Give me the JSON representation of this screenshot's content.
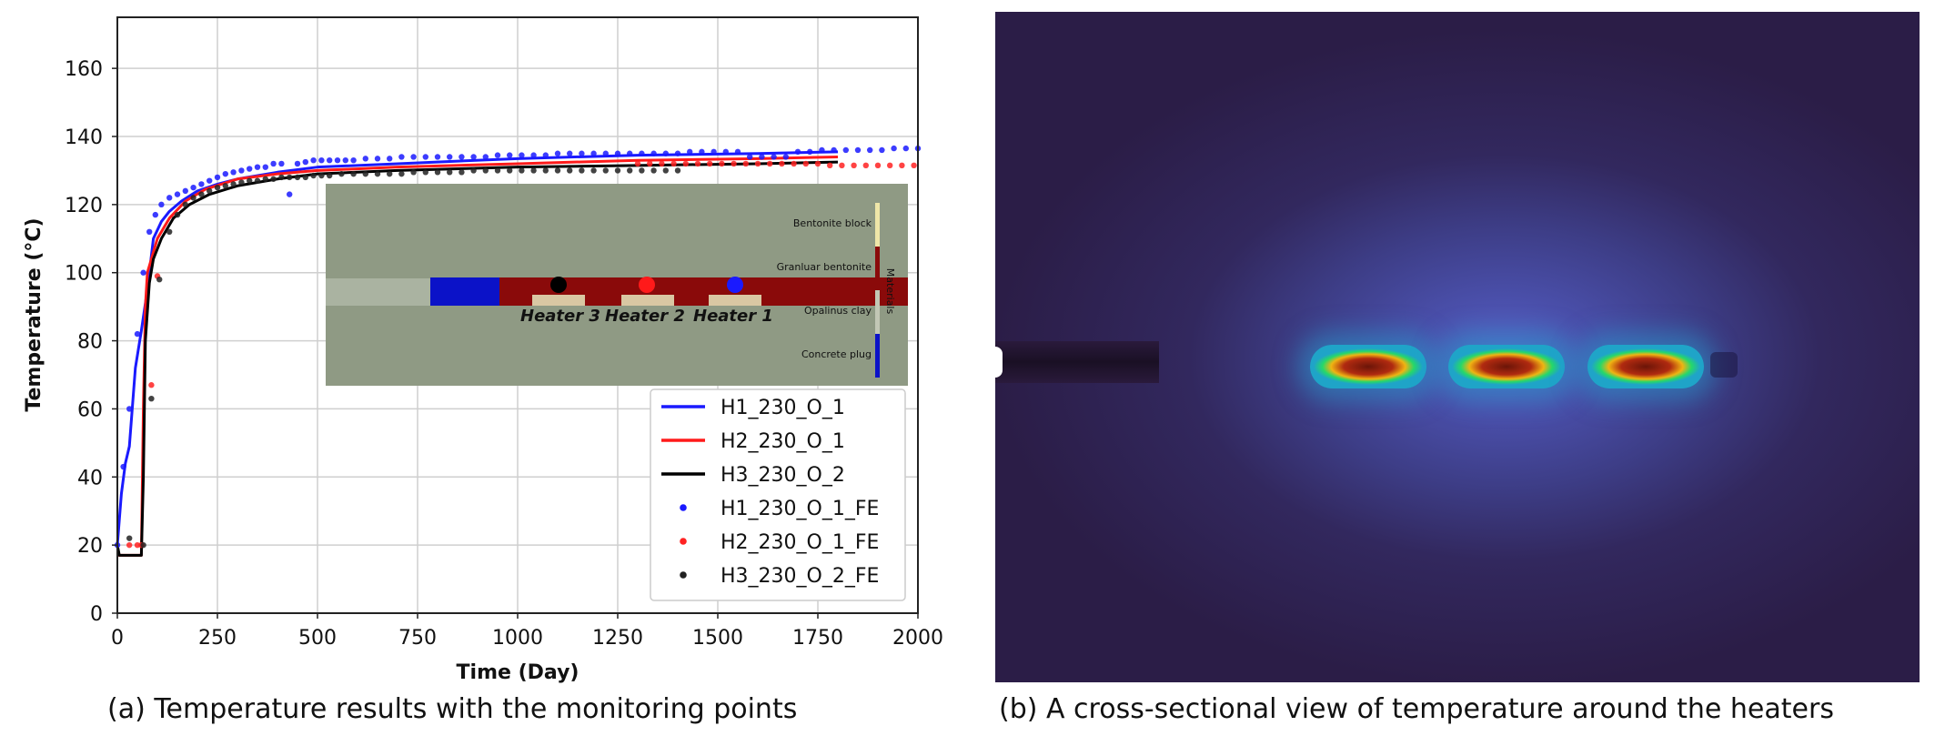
{
  "chart_data": {
    "type": "line",
    "xlabel": "Time (Day)",
    "ylabel": "Temperature (°C)",
    "xlim": [
      0,
      2000
    ],
    "ylim": [
      0,
      175
    ],
    "xticks": [
      "0",
      "250",
      "500",
      "750",
      "1000",
      "1250",
      "1500",
      "1750",
      "2000"
    ],
    "yticks": [
      "0",
      "20",
      "40",
      "60",
      "80",
      "100",
      "120",
      "140",
      "160"
    ],
    "grid": true,
    "legend_position": "bottom-right",
    "series": [
      {
        "name": "H1_230_O_1",
        "kind": "line",
        "color": "#1a1aff",
        "x": [
          0,
          10,
          20,
          30,
          45,
          60,
          75,
          90,
          110,
          130,
          160,
          200,
          250,
          300,
          400,
          500,
          700,
          1000,
          1300,
          1600,
          1800
        ],
        "y": [
          20,
          35,
          44,
          49,
          72,
          83,
          95,
          110,
          115,
          118,
          121,
          124,
          126,
          127.5,
          129.5,
          131,
          132,
          133.5,
          134.5,
          135,
          135.5
        ]
      },
      {
        "name": "H2_230_O_1",
        "kind": "line",
        "color": "#ff1a1a",
        "x": [
          0,
          60,
          65,
          70,
          75,
          85,
          100,
          130,
          170,
          220,
          300,
          400,
          500,
          700,
          1000,
          1300,
          1600,
          1800
        ],
        "y": [
          17,
          17,
          60,
          90,
          100,
          104,
          110,
          116,
          121,
          124.5,
          127.5,
          129,
          130,
          131,
          132,
          133,
          133.5,
          134
        ]
      },
      {
        "name": "H3_230_O_2",
        "kind": "line",
        "color": "#000000",
        "x": [
          0,
          5,
          10,
          60,
          65,
          70,
          80,
          90,
          110,
          140,
          180,
          230,
          300,
          400,
          500,
          700,
          1000,
          1300,
          1600,
          1800
        ],
        "y": [
          20,
          17,
          17,
          17,
          40,
          80,
          97,
          104,
          110,
          116,
          120,
          123,
          125.5,
          127.5,
          129,
          130,
          131,
          131.5,
          132,
          132.5
        ]
      },
      {
        "name": "H1_230_O_1_FE",
        "kind": "scatter",
        "color": "#1a1aff",
        "x": [
          0,
          15,
          30,
          50,
          65,
          80,
          95,
          110,
          130,
          150,
          170,
          190,
          210,
          230,
          250,
          270,
          290,
          310,
          330,
          350,
          370,
          390,
          410,
          430,
          450,
          470,
          490,
          510,
          530,
          550,
          570,
          590,
          620,
          650,
          680,
          710,
          740,
          770,
          800,
          830,
          860,
          890,
          920,
          950,
          980,
          1010,
          1040,
          1070,
          1100,
          1130,
          1160,
          1190,
          1220,
          1250,
          1280,
          1310,
          1340,
          1370,
          1400,
          1430,
          1460,
          1490,
          1520,
          1550,
          1580,
          1610,
          1640,
          1670,
          1700,
          1730,
          1760,
          1790,
          1820,
          1850,
          1880,
          1910,
          1940,
          1970,
          2000
        ],
        "y": [
          20,
          43,
          60,
          82,
          100,
          112,
          117,
          120,
          122,
          123,
          124,
          125,
          126,
          127,
          128,
          129,
          129.5,
          130,
          130.5,
          131,
          131,
          132,
          132,
          123,
          132,
          132.5,
          133,
          133,
          133,
          133,
          133,
          133,
          133.5,
          133.5,
          133.5,
          134,
          134,
          134,
          134,
          134,
          134,
          134,
          134,
          134.5,
          134.5,
          134.5,
          134.5,
          134.5,
          135,
          135,
          135,
          135,
          135,
          135,
          135,
          135,
          135,
          135,
          135,
          135.5,
          135.5,
          135.5,
          135.5,
          135.5,
          134,
          134,
          134,
          134,
          135.5,
          135.5,
          136,
          136,
          136,
          136,
          136,
          136,
          136.5,
          136.5,
          136.5
        ]
      },
      {
        "name": "H2_230_O_1_FE",
        "kind": "scatter",
        "color": "#ff2222",
        "x": [
          30,
          50,
          60,
          85,
          100,
          1300,
          1330,
          1360,
          1390,
          1420,
          1450,
          1480,
          1510,
          1540,
          1570,
          1600,
          1630,
          1660,
          1690,
          1720,
          1750,
          1780,
          1810,
          1840,
          1870,
          1900,
          1930,
          1960,
          1990
        ],
        "y": [
          20,
          20,
          20,
          67,
          99,
          132,
          132,
          132,
          132,
          132,
          132,
          132,
          132,
          132,
          132,
          132,
          132,
          132,
          132,
          132,
          132,
          131.5,
          131.5,
          131.5,
          131.5,
          131.5,
          131.5,
          131.5,
          131.5
        ]
      },
      {
        "name": "H3_230_O_2_FE",
        "kind": "scatter",
        "color": "#222222",
        "x": [
          30,
          65,
          85,
          105,
          130,
          150,
          170,
          190,
          210,
          230,
          250,
          270,
          290,
          310,
          330,
          350,
          370,
          390,
          410,
          430,
          450,
          470,
          490,
          510,
          530,
          560,
          590,
          620,
          650,
          680,
          710,
          740,
          770,
          800,
          830,
          860,
          890,
          920,
          950,
          980,
          1010,
          1040,
          1070,
          1100,
          1130,
          1160,
          1190,
          1220,
          1250,
          1280,
          1310,
          1340,
          1370,
          1400
        ],
        "y": [
          22,
          20,
          63,
          98,
          112,
          117,
          120,
          122,
          123,
          124,
          125,
          125.5,
          126,
          126.5,
          127,
          127,
          127.5,
          127.5,
          128,
          128,
          128,
          128,
          128.5,
          128.5,
          128.5,
          129,
          129,
          129,
          129,
          129,
          129,
          129.5,
          129.5,
          129.5,
          129.5,
          129.5,
          130,
          130,
          130,
          130,
          130,
          130,
          130,
          130,
          130,
          130,
          130,
          130,
          130,
          130,
          130,
          130,
          130,
          130
        ]
      }
    ]
  },
  "inset": {
    "heater_labels": [
      "Heater 3",
      "Heater 2",
      "Heater 1"
    ],
    "legend": [
      "Bentonite block",
      "Granluar bentonite",
      "Opalinus clay",
      "Concrete plug"
    ],
    "vertical_label": "Materials"
  },
  "captions": {
    "a": "(a) Temperature results with the monitoring points",
    "b": "(b) A cross-sectional view of temperature around the heaters"
  }
}
